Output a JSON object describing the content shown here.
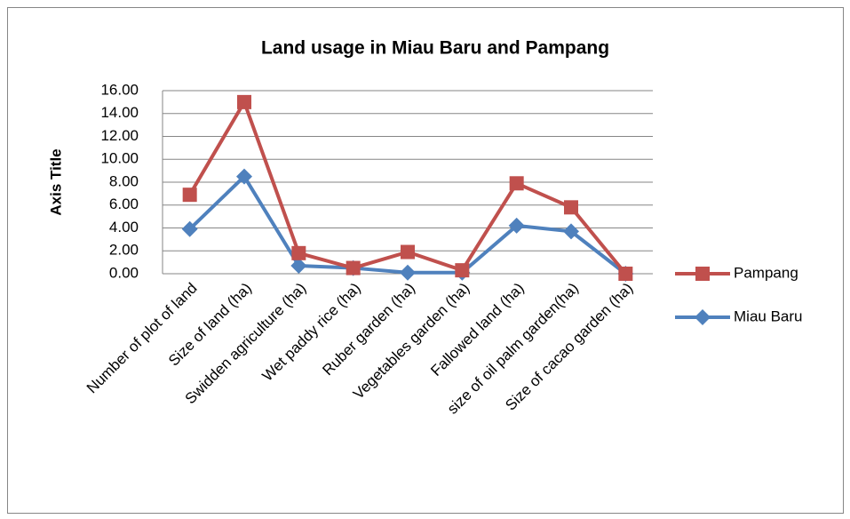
{
  "chart_data": {
    "type": "line",
    "title": "Land  usage in Miau Baru and Pampang",
    "y_label": "Axis Title",
    "categories": [
      "Number of plot of land",
      "Size of land (ha)",
      "Swidden agriculture (ha)",
      "Wet paddy rice (ha)",
      "Ruber garden (ha)",
      "Vegetables garden (ha)",
      "Fallowed land (ha)",
      "size of oil palm garden(ha)",
      "Size of cacao garden (ha)"
    ],
    "series": [
      {
        "name": "Pampang",
        "color": "#c0504d",
        "marker": "square",
        "values": [
          6.9,
          15.0,
          1.8,
          0.5,
          1.9,
          0.3,
          7.9,
          5.8,
          0.0
        ]
      },
      {
        "name": "Miau Baru",
        "color": "#4f81bd",
        "marker": "diamond",
        "values": [
          3.9,
          8.5,
          0.7,
          0.5,
          0.1,
          0.1,
          4.2,
          3.7,
          0.0
        ]
      }
    ],
    "ylim": [
      0,
      16
    ],
    "yticks": [
      {
        "value": 0,
        "label": "0.00"
      },
      {
        "value": 2,
        "label": "2.00"
      },
      {
        "value": 4,
        "label": "4.00"
      },
      {
        "value": 6,
        "label": "6.00"
      },
      {
        "value": 8,
        "label": "8.00"
      },
      {
        "value": 10,
        "label": "10.00"
      },
      {
        "value": 12,
        "label": "12.00"
      },
      {
        "value": 14,
        "label": "14.00"
      },
      {
        "value": 16,
        "label": "16.00"
      }
    ],
    "grid": true,
    "legend": "right"
  }
}
